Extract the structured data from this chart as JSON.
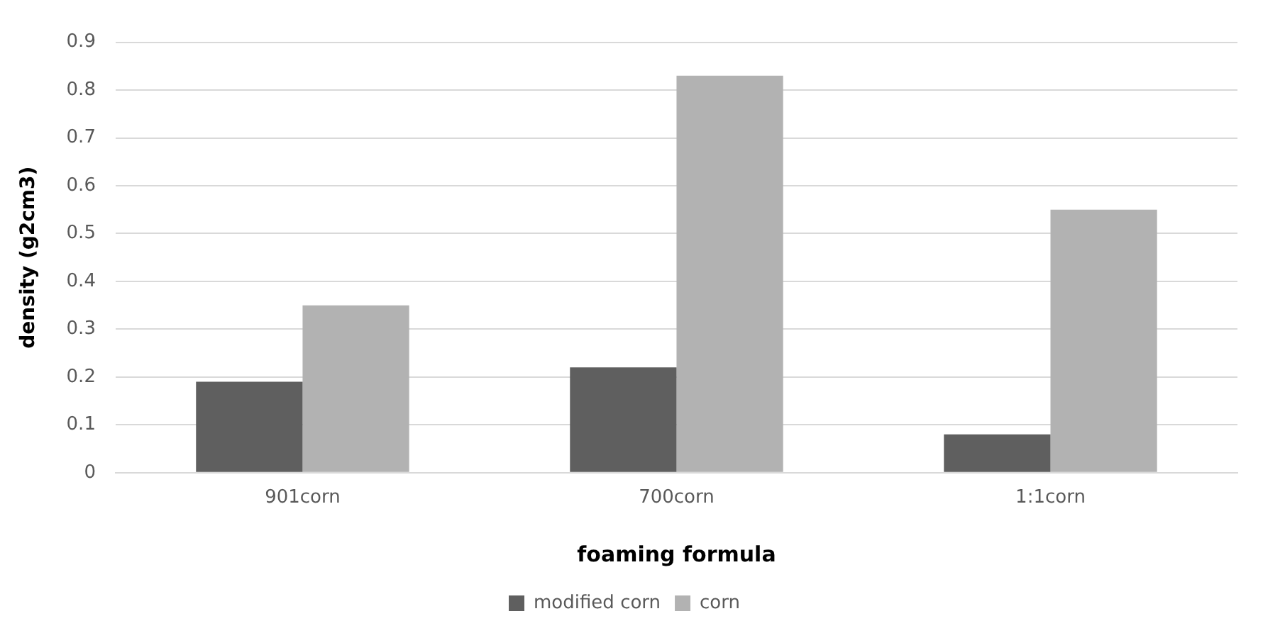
{
  "chart_data": {
    "type": "bar",
    "xlabel": "foaming formula",
    "ylabel": "density (g2cm3)",
    "categories": [
      "901corn",
      "700corn",
      "1:1corn"
    ],
    "series": [
      {
        "name": "modified corn",
        "color": "#5f5f5f",
        "values": [
          0.19,
          0.22,
          0.08
        ]
      },
      {
        "name": "corn",
        "color": "#b2b2b2",
        "values": [
          0.35,
          0.83,
          0.55
        ]
      }
    ],
    "ylim": [
      0,
      0.9
    ],
    "yticks": [
      0,
      0.1,
      0.2,
      0.3,
      0.4,
      0.5,
      0.6,
      0.7,
      0.8,
      0.9
    ],
    "grid": "y",
    "legend": "bottom"
  }
}
